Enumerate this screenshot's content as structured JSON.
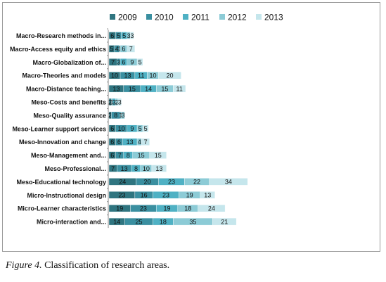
{
  "chart_data": {
    "type": "bar",
    "stacked": true,
    "orientation": "horizontal",
    "categories": [
      "Macro-Research methods in...",
      "Macro-Access equity and ethics",
      "Macro-Globalization of...",
      "Macro-Theories and models",
      "Macro-Distance teaching...",
      "Meso-Costs and benefits",
      "Meso-Quality assurance",
      "Meso-Learner support services",
      "Meso-Innovation and change",
      "Meso-Management and...",
      "Meso-Professional...",
      "Meso-Educational technology",
      "Micro-Instructional design",
      "Micro-Learner characteristics",
      "Micro-interaction and..."
    ],
    "series": [
      {
        "name": "2009",
        "color": "#2f7580",
        "values": [
          6,
          5,
          7,
          10,
          13,
          2,
          2,
          6,
          6,
          6,
          7,
          24,
          23,
          19,
          14
        ]
      },
      {
        "name": "2010",
        "color": "#3a8fa0",
        "values": [
          5,
          4,
          3,
          13,
          15,
          1,
          8,
          10,
          6,
          7,
          13,
          20,
          16,
          23,
          25
        ]
      },
      {
        "name": "2011",
        "color": "#4fb1c4",
        "values": [
          5,
          1,
          6,
          11,
          14,
          3,
          1,
          9,
          13,
          8,
          8,
          23,
          23,
          19,
          18
        ]
      },
      {
        "name": "2012",
        "color": "#8ccbd6",
        "values": [
          3,
          6,
          9,
          10,
          15,
          2,
          3,
          5,
          4,
          15,
          10,
          22,
          19,
          18,
          35
        ]
      },
      {
        "name": "2013",
        "color": "#c5e6ec",
        "values": [
          3,
          7,
          5,
          20,
          11,
          3,
          0,
          5,
          7,
          15,
          13,
          34,
          13,
          24,
          21
        ]
      }
    ],
    "legend_position": "top",
    "grid": false
  },
  "caption": {
    "label": "Figure 4.",
    "text": " Classification of research areas."
  }
}
